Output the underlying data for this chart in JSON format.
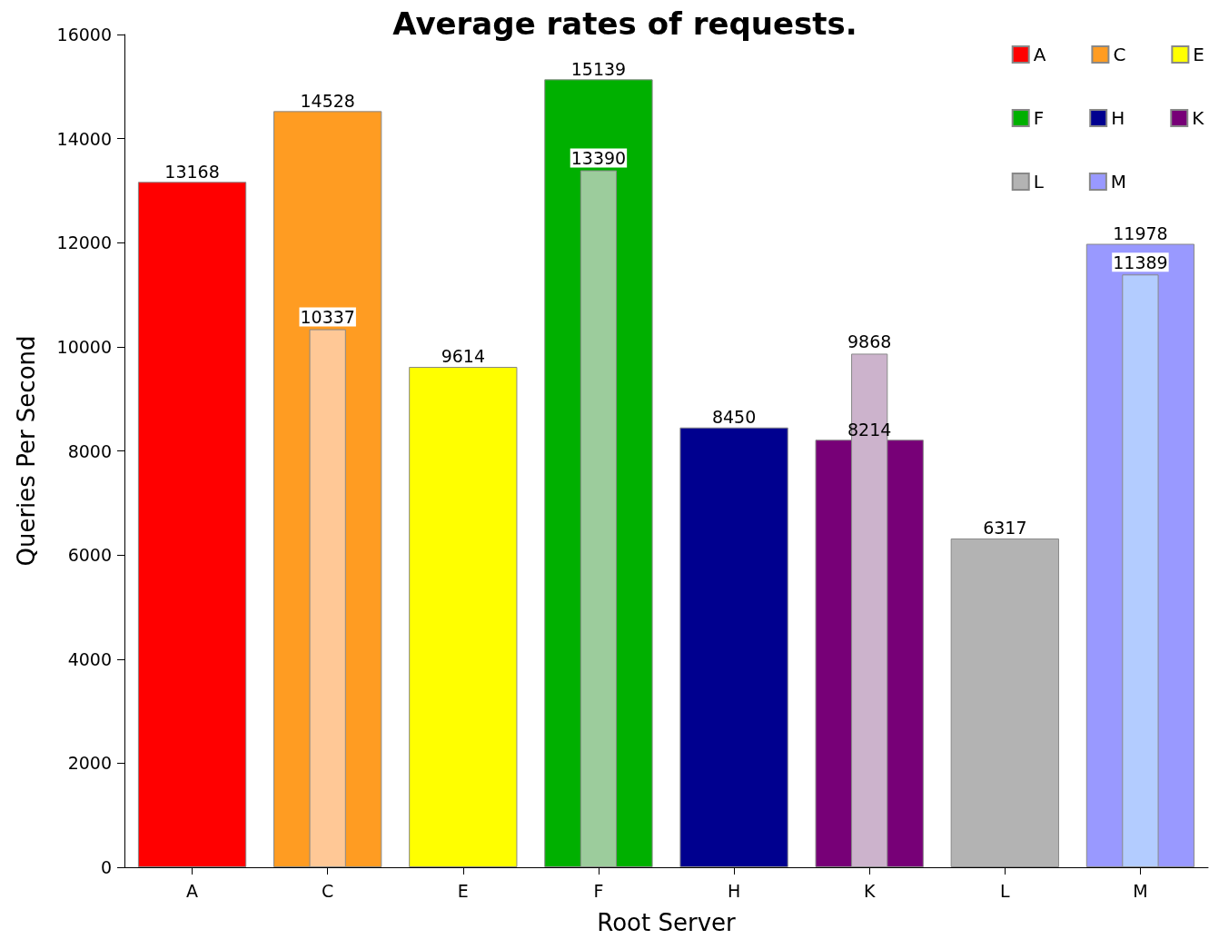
{
  "chart_data": {
    "type": "bar",
    "title": "Average rates of requests.",
    "xlabel": "Root Server",
    "ylabel": "Queries Per Second",
    "categories": [
      "A",
      "C",
      "E",
      "F",
      "H",
      "K",
      "L",
      "M"
    ],
    "series": [
      {
        "name": "A",
        "color": "#ff0000",
        "values": [
          13168,
          null,
          null,
          null,
          null,
          null,
          null,
          null
        ]
      },
      {
        "name": "C",
        "color": "#ff9c22",
        "values": [
          null,
          14528,
          null,
          null,
          null,
          null,
          null,
          null
        ]
      },
      {
        "name": "E",
        "color": "#ffff00",
        "values": [
          null,
          null,
          9614,
          null,
          null,
          null,
          null,
          null
        ]
      },
      {
        "name": "F",
        "color": "#00b000",
        "values": [
          null,
          null,
          null,
          15139,
          null,
          null,
          null,
          null
        ]
      },
      {
        "name": "H",
        "color": "#00008f",
        "values": [
          null,
          null,
          null,
          null,
          8450,
          null,
          null,
          null
        ]
      },
      {
        "name": "K",
        "color": "#770077",
        "values": [
          null,
          null,
          null,
          null,
          null,
          8214,
          null,
          null
        ]
      },
      {
        "name": "L",
        "color": "#b3b3b3",
        "values": [
          null,
          null,
          null,
          null,
          null,
          null,
          6317,
          null
        ]
      },
      {
        "name": "M",
        "color": "#9999ff",
        "values": [
          null,
          null,
          null,
          null,
          null,
          null,
          null,
          11978
        ]
      },
      {
        "colors": [
          null,
          "#ffc896",
          null,
          "#9ccc9c",
          null,
          "#ccb3cc",
          null,
          "#b3ccff"
        ],
        "values": [
          null,
          10337,
          null,
          13390,
          null,
          9868,
          null,
          11389
        ]
      }
    ],
    "ylim": [
      0,
      16000
    ],
    "yticks": [
      0,
      2000,
      4000,
      6000,
      8000,
      10000,
      12000,
      14000,
      16000
    ],
    "grid": false,
    "legend": "top right",
    "data_labels": true
  }
}
